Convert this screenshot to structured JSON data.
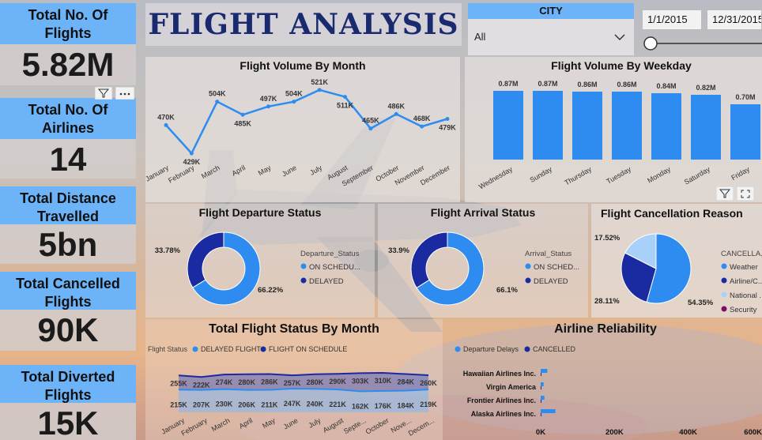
{
  "title": "FLIGHT ANALYSIS",
  "kpis": [
    {
      "label": "Total No. Of Flights",
      "value": "5.82M"
    },
    {
      "label": "Total No. Of Airlines",
      "value": "14"
    },
    {
      "label": "Total Distance Travelled",
      "value": "5bn"
    },
    {
      "label": "Total Cancelled Flights",
      "value": "90K"
    },
    {
      "label": "Total Diverted Flights",
      "value": "15K"
    }
  ],
  "filters": {
    "city_label": "CITY",
    "city_value": "All",
    "date_start": "1/1/2015",
    "date_end": "12/31/2015"
  },
  "colors": {
    "accent": "#6db3f7",
    "line": "#2e8cf0",
    "bar": "#2e8cf0",
    "dark": "#1a2aa0",
    "navy": "#1a2a6e"
  },
  "chart_data": [
    {
      "type": "line",
      "title": "Flight Volume By Month",
      "categories": [
        "January",
        "February",
        "March",
        "April",
        "May",
        "June",
        "July",
        "August",
        "September",
        "October",
        "November",
        "December"
      ],
      "values": [
        470,
        429,
        504,
        485,
        497,
        504,
        521,
        511,
        465,
        486,
        468,
        479
      ],
      "labels": [
        "470K",
        "429K",
        "504K",
        "485K",
        "497K",
        "504K",
        "521K",
        "511K",
        "465K",
        "486K",
        "468K",
        "479K"
      ],
      "ylim": [
        420,
        530
      ]
    },
    {
      "type": "bar",
      "title": "Flight Volume By Weekday",
      "categories": [
        "Wednesday",
        "Sunday",
        "Thursday",
        "Tuesday",
        "Monday",
        "Saturday",
        "Friday"
      ],
      "values": [
        0.87,
        0.87,
        0.86,
        0.86,
        0.84,
        0.82,
        0.7
      ],
      "labels": [
        "0.87M",
        "0.87M",
        "0.86M",
        "0.86M",
        "0.84M",
        "0.82M",
        "0.70M"
      ],
      "ylim": [
        0,
        1
      ]
    },
    {
      "type": "pie",
      "title": "Flight Departure Status",
      "legend_title": "Departure_Status",
      "slices": [
        {
          "name": "ON SCHEDU...",
          "value": 66.22,
          "label": "66.22%",
          "color": "#2e8cf0"
        },
        {
          "name": "DELAYED",
          "value": 33.78,
          "label": "33.78%",
          "color": "#1a2aa0"
        }
      ]
    },
    {
      "type": "pie",
      "title": "Flight Arrival Status",
      "legend_title": "Arrival_Status",
      "slices": [
        {
          "name": "ON SCHED...",
          "value": 66.1,
          "label": "66.1%",
          "color": "#2e8cf0"
        },
        {
          "name": "DELAYED",
          "value": 33.9,
          "label": "33.9%",
          "color": "#1a2aa0"
        }
      ]
    },
    {
      "type": "pie",
      "title": "Flight Cancellation Reason",
      "legend_title": "CANCELLA...",
      "slices": [
        {
          "name": "Weather",
          "value": 54.35,
          "label": "54.35%",
          "color": "#2e8cf0"
        },
        {
          "name": "Airline/C...",
          "value": 28.11,
          "label": "28.11%",
          "color": "#1a2aa0"
        },
        {
          "name": "National ...",
          "value": 17.52,
          "label": "17.52%",
          "color": "#a8d0f8"
        },
        {
          "name": "Security",
          "value": 0.02,
          "label": "",
          "color": "#7a1060"
        }
      ]
    },
    {
      "type": "area",
      "title": "Total Flight Status By Month",
      "legend_title": "Flight Status",
      "categories": [
        "January",
        "February",
        "March",
        "April",
        "May",
        "June",
        "July",
        "August",
        "Septe...",
        "October",
        "Nove...",
        "Decem..."
      ],
      "series": [
        {
          "name": "DELAYED FLIGHT",
          "values": [
            215,
            207,
            230,
            206,
            211,
            247,
            240,
            221,
            162,
            176,
            184,
            219
          ],
          "labels": [
            "215K",
            "207K",
            "230K",
            "206K",
            "211K",
            "247K",
            "240K",
            "221K",
            "162K",
            "176K",
            "184K",
            "219K"
          ],
          "color": "#2e8cf0"
        },
        {
          "name": "FLIGHT ON SCHEDULE",
          "values": [
            255,
            222,
            274,
            280,
            286,
            257,
            280,
            290,
            303,
            310,
            284,
            260
          ],
          "labels": [
            "255K",
            "222K",
            "274K",
            "280K",
            "286K",
            "257K",
            "280K",
            "290K",
            "303K",
            "310K",
            "284K",
            "260K"
          ],
          "color": "#1a2aa0"
        }
      ]
    },
    {
      "type": "bar",
      "title": "Airline Reliability",
      "orientation": "horizontal",
      "categories": [
        "Hawaiian Airlines Inc.",
        "Virgin America",
        "Frontier Airlines Inc.",
        "Alaska Airlines Inc."
      ],
      "series": [
        {
          "name": "Departure Delays",
          "values": [
            18,
            8,
            10,
            40
          ],
          "color": "#2e8cf0"
        },
        {
          "name": "CANCELLED",
          "values": [
            0.2,
            0.1,
            0.3,
            0.1
          ],
          "color": "#1a2aa0"
        }
      ],
      "ticks": [
        "0K",
        "200K",
        "400K",
        "600K"
      ],
      "xlim": [
        0,
        600
      ]
    }
  ]
}
